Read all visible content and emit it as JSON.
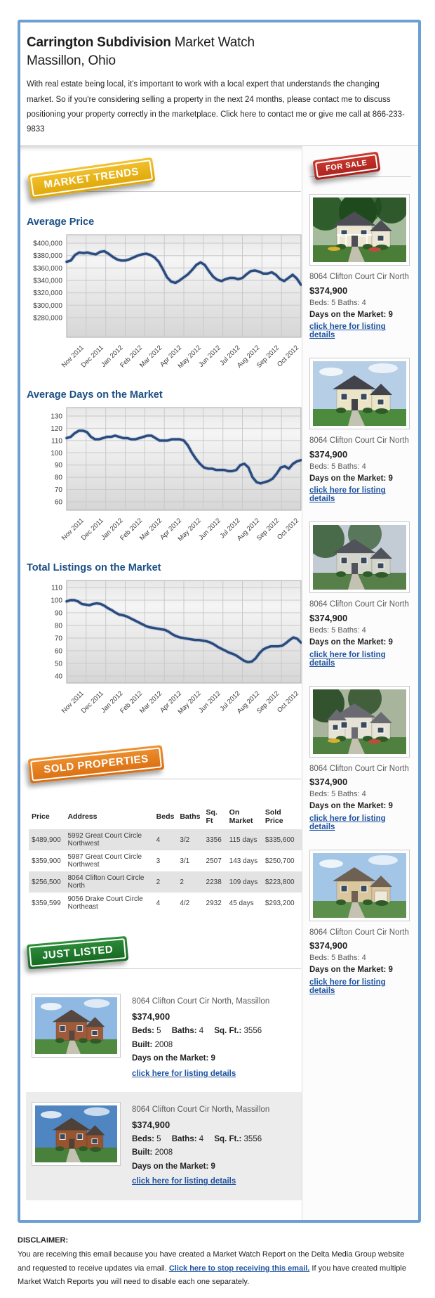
{
  "header": {
    "title_bold": "Carrington Subdivision",
    "title_rest": " Market Watch",
    "subtitle": "Massillon, Ohio",
    "intro": "With real estate being local, it's important to work with a local expert that understands the changing market. So if you're considering selling a property in the next 24 months, please contact me to discuss positioning your property correctly in the marketplace. Click here to contact me or give me call at 866-233-9833"
  },
  "badges": {
    "market_trends": "MARKET TRENDS",
    "for_sale": "FOR SALE",
    "sold_properties": "SOLD PROPERTIES",
    "just_listed": "JUST LISTED"
  },
  "colors": {
    "container_border": "#6d9fd2",
    "heading_blue": "#1b4f85",
    "chart_line": "#2b4a7c",
    "link_blue": "#2054a0",
    "badge_gold": "#e9af0b",
    "badge_red": "#b5241d",
    "badge_orange": "#e2791c",
    "badge_green": "#1d7a2b"
  },
  "chart_data": [
    {
      "type": "line",
      "title": "Average Price",
      "x_labels": [
        "Nov 2011",
        "Dec 2011",
        "Jan 2012",
        "Feb 2012",
        "Mar 2012",
        "Apr 2012",
        "May 2012",
        "Jun 2012",
        "Jul 2012",
        "Aug 2012",
        "Sep 2012",
        "Oct 2012"
      ],
      "y_tick_labels": [
        "$400,000",
        "$380,000",
        "$360,000",
        "$340,000",
        "$320,000",
        "$300,000",
        "$280,000"
      ],
      "y_tick_values": [
        400,
        380,
        360,
        340,
        320,
        300,
        280
      ],
      "unit": "USD thousands",
      "values": [
        370,
        372,
        381,
        385,
        384,
        385,
        383,
        382,
        386,
        387,
        383,
        378,
        374,
        372,
        372,
        374,
        377,
        380,
        382,
        383,
        381,
        377,
        370,
        358,
        345,
        338,
        336,
        340,
        345,
        350,
        357,
        365,
        369,
        365,
        355,
        346,
        341,
        339,
        342,
        344,
        344,
        342,
        344,
        350,
        355,
        356,
        354,
        351,
        351,
        353,
        349,
        342,
        339,
        344,
        349,
        343,
        333
      ],
      "line_color": "#2b4a7c",
      "grid": true,
      "legend": "none"
    },
    {
      "type": "line",
      "title": "Average Days on the Market",
      "x_labels": [
        "Nov 2011",
        "Dec 2011",
        "Jan 2012",
        "Feb 2012",
        "Mar 2012",
        "Apr 2012",
        "May 2012",
        "Jun 2012",
        "Jul 2012",
        "Aug 2012",
        "Sep 2012",
        "Oct 2012"
      ],
      "y_tick_labels": [
        "130",
        "120",
        "110",
        "100",
        "90",
        "80",
        "70",
        "60"
      ],
      "y_tick_values": [
        130,
        120,
        110,
        100,
        90,
        80,
        70,
        60
      ],
      "unit": "days",
      "values": [
        112,
        113,
        116,
        118,
        118,
        117,
        113,
        111,
        111,
        112,
        113,
        113,
        114,
        113,
        112,
        112,
        111,
        111,
        112,
        113,
        114,
        114,
        112,
        110,
        110,
        110,
        111,
        111,
        111,
        110,
        106,
        100,
        95,
        91,
        88,
        87,
        87,
        86,
        86,
        86,
        85,
        85,
        86,
        90,
        91,
        88,
        80,
        76,
        75,
        76,
        77,
        79,
        83,
        88,
        89,
        87,
        91,
        93,
        94
      ],
      "line_color": "#2b4a7c",
      "grid": true,
      "legend": "none"
    },
    {
      "type": "line",
      "title": "Total Listings on the Market",
      "x_labels": [
        "Nov 2011",
        "Dec 2011",
        "Jan 2012",
        "Feb 2012",
        "Mar 2012",
        "Apr 2012",
        "May 2012",
        "Jun 2012",
        "Jul 2012",
        "Aug 2012",
        "Sep 2012",
        "Oct 2012"
      ],
      "y_tick_labels": [
        "110",
        "100",
        "90",
        "80",
        "70",
        "60",
        "50",
        "40"
      ],
      "y_tick_values": [
        110,
        100,
        90,
        80,
        70,
        60,
        50,
        40
      ],
      "unit": "listings",
      "values": [
        99,
        100,
        100,
        99,
        97,
        96.5,
        96,
        97,
        97.5,
        97,
        95.5,
        93.5,
        92,
        90,
        88.5,
        88,
        87,
        85.5,
        84,
        82.5,
        81,
        79.5,
        78.5,
        78,
        77.5,
        77,
        76.5,
        75,
        73,
        71.5,
        70.5,
        70,
        69.5,
        69,
        68.5,
        68.5,
        68,
        67.5,
        66.5,
        65,
        63,
        61.5,
        60,
        58.5,
        57.5,
        56,
        54,
        52,
        51,
        51.5,
        54,
        58,
        61,
        62.5,
        63.5,
        63.5,
        63.5,
        64,
        66,
        68.5,
        70.5,
        69.5,
        66.5
      ],
      "line_color": "#2b4a7c",
      "grid": true,
      "legend": "none"
    }
  ],
  "sidebar": {
    "listings": [
      {
        "address": "8064 Clifton Court Cir North",
        "price": "$374,900",
        "beds_baths": "Beds: 5 Baths: 4",
        "days": "Days on the Market: 9",
        "link": "click here for listing details",
        "photo": "house-photo"
      },
      {
        "address": "8064 Clifton Court Cir North",
        "price": "$374,900",
        "beds_baths": "Beds: 5 Baths: 4",
        "days": "Days on the Market: 9",
        "link": "click here for listing details",
        "photo": "house-photo"
      },
      {
        "address": "8064 Clifton Court Cir North",
        "price": "$374,900",
        "beds_baths": "Beds: 5 Baths: 4",
        "days": "Days on the Market: 9",
        "link": "click here for listing details",
        "photo": "house-photo"
      },
      {
        "address": "8064 Clifton Court Cir North",
        "price": "$374,900",
        "beds_baths": "Beds: 5 Baths: 4",
        "days": "Days on the Market: 9",
        "link": "click here for listing details",
        "photo": "house-photo"
      },
      {
        "address": "8064 Clifton Court Cir North",
        "price": "$374,900",
        "beds_baths": "Beds: 5 Baths: 4",
        "days": "Days on the Market: 9",
        "link": "click here for listing details",
        "photo": "house-photo"
      }
    ]
  },
  "sold": {
    "headers": [
      "Price",
      "Address",
      "Beds",
      "Baths",
      "Sq. Ft",
      "On Market",
      "Sold Price"
    ],
    "rows": [
      [
        "$489,900",
        "5992 Great Court Circle Northwest",
        "4",
        "3/2",
        "3356",
        "115 days",
        "$335,600"
      ],
      [
        "$359,900",
        "5987 Great Court Circle Northwest",
        "3",
        "3/1",
        "2507",
        "143 days",
        "$250,700"
      ],
      [
        "$256,500",
        "8064 Clifton Court Circle North",
        "2",
        "2",
        "2238",
        "109 days",
        "$223,800"
      ],
      [
        "$359,599",
        "9056 Drake Court Circle Northeast",
        "4",
        "4/2",
        "2932",
        "45 days",
        "$293,200"
      ]
    ]
  },
  "just_listed": {
    "items": [
      {
        "address": "8064 Clifton Court Cir North, Massillon",
        "price": "$374,900",
        "specs": [
          {
            "label": "Beds:",
            "value": "5"
          },
          {
            "label": "Baths:",
            "value": "4"
          },
          {
            "label": "Sq. Ft.:",
            "value": "3556"
          },
          {
            "label": "Built:",
            "value": "2008"
          }
        ],
        "days": "Days on the Market: 9",
        "link": "click here for listing details",
        "photo": "house-photo"
      },
      {
        "address": "8064 Clifton Court Cir North, Massillon",
        "price": "$374,900",
        "specs": [
          {
            "label": "Beds:",
            "value": "5"
          },
          {
            "label": "Baths:",
            "value": "4"
          },
          {
            "label": "Sq. Ft.:",
            "value": "3556"
          },
          {
            "label": "Built:",
            "value": "2008"
          }
        ],
        "days": "Days on the Market: 9",
        "link": "click here for listing details",
        "photo": "house-photo"
      }
    ]
  },
  "disclaimer": {
    "label": "DISCLAIMER:",
    "text_before": "You are receiving this email because you have created a Market Watch Report on the Delta Media Group website and requested to receive updates via email. ",
    "link": "Click here to stop receiving this email.",
    "text_after": " If you have created multiple Market Watch Reports you will need to disable each one separately."
  }
}
